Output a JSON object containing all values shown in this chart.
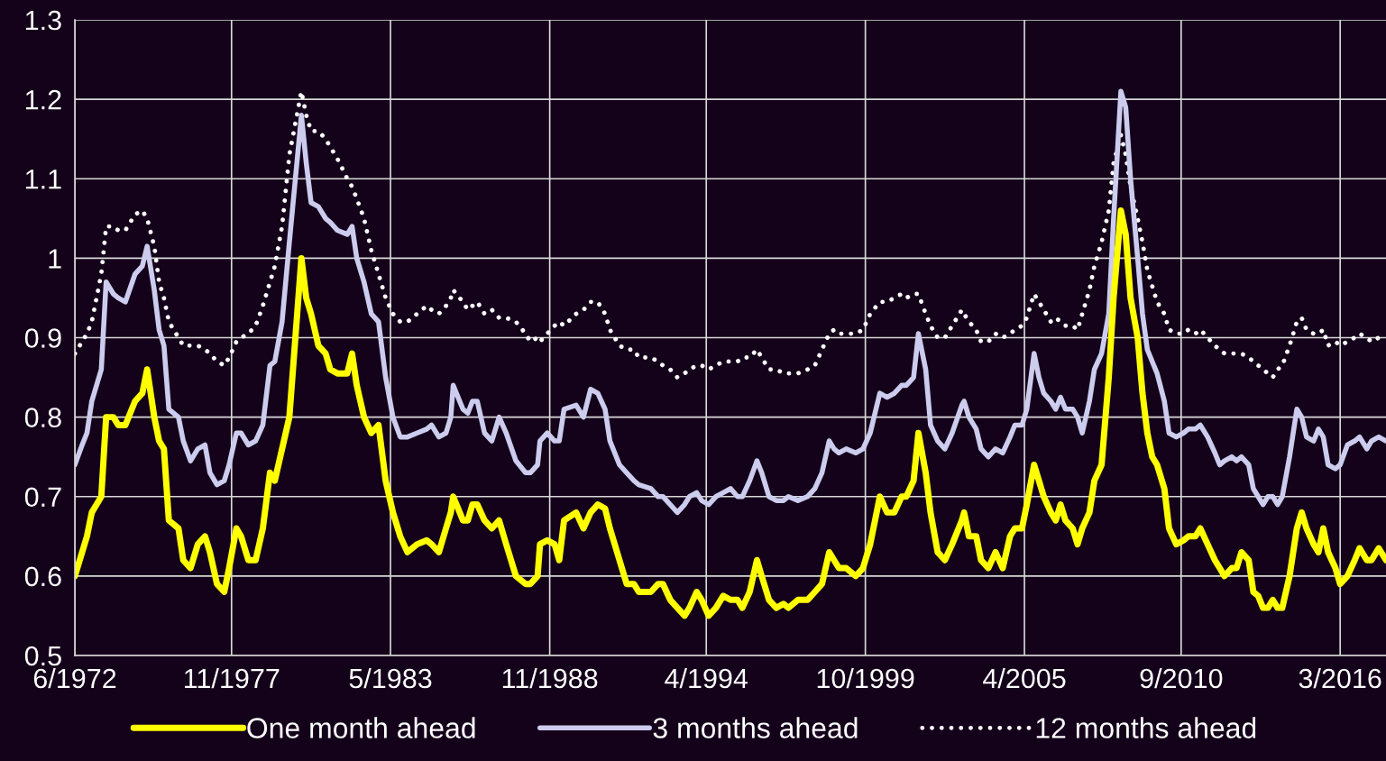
{
  "chart_data": {
    "type": "line",
    "x": [
      "1972-06",
      "1972-09",
      "1972-11",
      "1973-01",
      "1973-05",
      "1973-07",
      "1973-10",
      "1973-12",
      "1974-03",
      "1974-07",
      "1974-10",
      "1974-12",
      "1975-03",
      "1975-05",
      "1975-07",
      "1975-09",
      "1976-01",
      "1976-03",
      "1976-06",
      "1976-09",
      "1976-12",
      "1977-02",
      "1977-05",
      "1977-08",
      "1977-10",
      "1978-01",
      "1978-03",
      "1978-06",
      "1978-09",
      "1978-12",
      "1979-03",
      "1979-05",
      "1979-08",
      "1979-11",
      "1980-04",
      "1980-06",
      "1980-08",
      "1980-11",
      "1981-02",
      "1981-04",
      "1981-07",
      "1981-11",
      "1982-01",
      "1982-03",
      "1982-06",
      "1982-09",
      "1982-12",
      "1983-03",
      "1983-06",
      "1983-09",
      "1983-12",
      "1984-04",
      "1984-08",
      "1984-10",
      "1985-01",
      "1985-04",
      "1985-06",
      "1985-07",
      "1985-11",
      "1986-01",
      "1986-03",
      "1986-05",
      "1986-08",
      "1986-11",
      "1987-02",
      "1987-05",
      "1987-09",
      "1988-01",
      "1988-03",
      "1988-06",
      "1988-07",
      "1988-10",
      "1989-01",
      "1989-03",
      "1989-05",
      "1989-10",
      "1990-01",
      "1990-04",
      "1990-07",
      "1990-10",
      "1990-12",
      "1991-04",
      "1991-07",
      "1991-10",
      "1991-12",
      "1992-05",
      "1992-08",
      "1992-10",
      "1993-01",
      "1993-04",
      "1993-07",
      "1993-09",
      "1993-12",
      "1994-02",
      "1994-05",
      "1994-08",
      "1994-11",
      "1995-02",
      "1995-05",
      "1995-07",
      "1995-10",
      "1996-01",
      "1996-03",
      "1996-06",
      "1996-09",
      "1996-12",
      "1997-02",
      "1997-06",
      "1997-10",
      "1998-01",
      "1998-04",
      "1998-07",
      "1998-09",
      "1998-11",
      "1999-02",
      "1999-06",
      "1999-09",
      "1999-12",
      "2000-04",
      "2000-07",
      "2000-10",
      "2001-01",
      "2001-03",
      "2001-06",
      "2001-08",
      "2001-11",
      "2002-01",
      "2002-04",
      "2002-07",
      "2002-10",
      "2003-02",
      "2003-03",
      "2003-05",
      "2003-08",
      "2003-10",
      "2004-01",
      "2004-04",
      "2004-07",
      "2004-10",
      "2004-12",
      "2005-03",
      "2005-05",
      "2005-08",
      "2005-10",
      "2005-12",
      "2006-03",
      "2006-05",
      "2006-07",
      "2006-09",
      "2006-12",
      "2007-02",
      "2007-04",
      "2007-07",
      "2007-09",
      "2007-12",
      "2008-03",
      "2008-05",
      "2008-08",
      "2008-10",
      "2008-12",
      "2009-03",
      "2009-05",
      "2009-07",
      "2009-09",
      "2009-11",
      "2010-02",
      "2010-04",
      "2010-07",
      "2010-10",
      "2010-12",
      "2011-03",
      "2011-05",
      "2011-08",
      "2011-11",
      "2012-01",
      "2012-03",
      "2012-06",
      "2012-08",
      "2012-10",
      "2013-01",
      "2013-03",
      "2013-05",
      "2013-07",
      "2013-09",
      "2013-11",
      "2014-01",
      "2014-03",
      "2014-06",
      "2014-09",
      "2014-11",
      "2015-01",
      "2015-04",
      "2015-06",
      "2015-08",
      "2015-10",
      "2016-01",
      "2016-03",
      "2016-06",
      "2016-09",
      "2016-11",
      "2017-02",
      "2017-04",
      "2017-07",
      "2017-10"
    ],
    "series": [
      {
        "name": "One month ahead",
        "color": "#ffff00",
        "line_style": "solid",
        "values": [
          0.6,
          0.63,
          0.65,
          0.68,
          0.7,
          0.8,
          0.8,
          0.79,
          0.79,
          0.82,
          0.83,
          0.86,
          0.8,
          0.77,
          0.76,
          0.67,
          0.66,
          0.62,
          0.61,
          0.64,
          0.65,
          0.63,
          0.59,
          0.58,
          0.61,
          0.66,
          0.65,
          0.62,
          0.62,
          0.66,
          0.73,
          0.72,
          0.76,
          0.8,
          1.0,
          0.95,
          0.93,
          0.89,
          0.88,
          0.86,
          0.855,
          0.855,
          0.88,
          0.84,
          0.8,
          0.78,
          0.79,
          0.72,
          0.68,
          0.65,
          0.63,
          0.64,
          0.645,
          0.64,
          0.63,
          0.66,
          0.68,
          0.7,
          0.67,
          0.67,
          0.69,
          0.69,
          0.67,
          0.66,
          0.67,
          0.64,
          0.6,
          0.59,
          0.59,
          0.6,
          0.64,
          0.645,
          0.64,
          0.62,
          0.67,
          0.68,
          0.66,
          0.68,
          0.69,
          0.685,
          0.66,
          0.62,
          0.59,
          0.59,
          0.58,
          0.58,
          0.59,
          0.59,
          0.57,
          0.56,
          0.55,
          0.56,
          0.58,
          0.57,
          0.55,
          0.56,
          0.575,
          0.57,
          0.57,
          0.56,
          0.58,
          0.62,
          0.6,
          0.57,
          0.56,
          0.565,
          0.56,
          0.57,
          0.57,
          0.58,
          0.59,
          0.63,
          0.62,
          0.61,
          0.61,
          0.6,
          0.61,
          0.64,
          0.7,
          0.68,
          0.68,
          0.7,
          0.7,
          0.72,
          0.78,
          0.73,
          0.68,
          0.63,
          0.62,
          0.64,
          0.67,
          0.68,
          0.65,
          0.65,
          0.62,
          0.61,
          0.63,
          0.61,
          0.65,
          0.66,
          0.66,
          0.69,
          0.74,
          0.72,
          0.7,
          0.68,
          0.67,
          0.69,
          0.67,
          0.66,
          0.64,
          0.66,
          0.68,
          0.72,
          0.74,
          0.85,
          0.95,
          1.06,
          1.03,
          0.95,
          0.9,
          0.83,
          0.78,
          0.75,
          0.74,
          0.71,
          0.66,
          0.64,
          0.645,
          0.65,
          0.65,
          0.66,
          0.64,
          0.62,
          0.61,
          0.6,
          0.61,
          0.61,
          0.63,
          0.62,
          0.58,
          0.575,
          0.56,
          0.56,
          0.57,
          0.56,
          0.56,
          0.6,
          0.66,
          0.68,
          0.66,
          0.64,
          0.63,
          0.66,
          0.63,
          0.61,
          0.59,
          0.6,
          0.62,
          0.635,
          0.62,
          0.62,
          0.635,
          0.62
        ]
      },
      {
        "name": "3 months ahead",
        "color": "#ccccee",
        "line_style": "solid",
        "values": [
          0.74,
          0.765,
          0.78,
          0.82,
          0.86,
          0.97,
          0.955,
          0.95,
          0.945,
          0.98,
          0.99,
          1.015,
          0.96,
          0.91,
          0.89,
          0.81,
          0.8,
          0.77,
          0.745,
          0.76,
          0.765,
          0.73,
          0.715,
          0.72,
          0.74,
          0.78,
          0.78,
          0.765,
          0.77,
          0.79,
          0.865,
          0.87,
          0.92,
          1.02,
          1.18,
          1.12,
          1.07,
          1.065,
          1.05,
          1.045,
          1.035,
          1.03,
          1.04,
          1.0,
          0.97,
          0.93,
          0.92,
          0.85,
          0.8,
          0.775,
          0.775,
          0.78,
          0.785,
          0.79,
          0.775,
          0.78,
          0.8,
          0.84,
          0.81,
          0.805,
          0.82,
          0.82,
          0.78,
          0.77,
          0.8,
          0.78,
          0.745,
          0.73,
          0.73,
          0.74,
          0.77,
          0.78,
          0.77,
          0.77,
          0.81,
          0.815,
          0.8,
          0.835,
          0.83,
          0.81,
          0.77,
          0.74,
          0.73,
          0.72,
          0.715,
          0.71,
          0.7,
          0.7,
          0.69,
          0.68,
          0.69,
          0.7,
          0.705,
          0.695,
          0.69,
          0.7,
          0.705,
          0.71,
          0.7,
          0.7,
          0.72,
          0.745,
          0.73,
          0.7,
          0.695,
          0.695,
          0.7,
          0.695,
          0.7,
          0.71,
          0.73,
          0.77,
          0.76,
          0.755,
          0.76,
          0.755,
          0.76,
          0.78,
          0.83,
          0.825,
          0.83,
          0.84,
          0.84,
          0.85,
          0.905,
          0.86,
          0.79,
          0.77,
          0.76,
          0.78,
          0.815,
          0.82,
          0.8,
          0.785,
          0.76,
          0.75,
          0.76,
          0.755,
          0.775,
          0.79,
          0.79,
          0.81,
          0.88,
          0.85,
          0.83,
          0.82,
          0.81,
          0.825,
          0.81,
          0.81,
          0.8,
          0.78,
          0.82,
          0.86,
          0.88,
          0.93,
          1.05,
          1.21,
          1.19,
          1.1,
          1.0,
          0.93,
          0.885,
          0.87,
          0.855,
          0.82,
          0.78,
          0.775,
          0.78,
          0.785,
          0.785,
          0.79,
          0.775,
          0.755,
          0.74,
          0.745,
          0.75,
          0.745,
          0.75,
          0.74,
          0.71,
          0.7,
          0.69,
          0.7,
          0.7,
          0.69,
          0.7,
          0.75,
          0.81,
          0.8,
          0.775,
          0.77,
          0.785,
          0.775,
          0.74,
          0.735,
          0.74,
          0.765,
          0.77,
          0.775,
          0.76,
          0.77,
          0.775,
          0.77
        ]
      },
      {
        "name": "12 months ahead",
        "color": "#ffffff",
        "line_style": "dotted",
        "values": [
          0.88,
          0.895,
          0.905,
          0.92,
          0.98,
          1.04,
          1.04,
          1.035,
          1.035,
          1.055,
          1.06,
          1.05,
          1.015,
          0.97,
          0.95,
          0.92,
          0.9,
          0.89,
          0.89,
          0.89,
          0.885,
          0.88,
          0.87,
          0.865,
          0.875,
          0.895,
          0.9,
          0.905,
          0.915,
          0.94,
          0.97,
          0.99,
          1.04,
          1.13,
          1.21,
          1.18,
          1.16,
          1.16,
          1.15,
          1.14,
          1.125,
          1.1,
          1.09,
          1.075,
          1.05,
          1.01,
          0.98,
          0.95,
          0.93,
          0.92,
          0.92,
          0.93,
          0.94,
          0.935,
          0.93,
          0.94,
          0.95,
          0.96,
          0.945,
          0.935,
          0.94,
          0.945,
          0.93,
          0.935,
          0.925,
          0.925,
          0.92,
          0.905,
          0.895,
          0.9,
          0.895,
          0.905,
          0.915,
          0.92,
          0.915,
          0.93,
          0.935,
          0.945,
          0.945,
          0.93,
          0.91,
          0.89,
          0.885,
          0.885,
          0.875,
          0.875,
          0.87,
          0.865,
          0.86,
          0.85,
          0.855,
          0.86,
          0.865,
          0.865,
          0.86,
          0.865,
          0.87,
          0.87,
          0.87,
          0.875,
          0.875,
          0.885,
          0.875,
          0.86,
          0.86,
          0.855,
          0.855,
          0.855,
          0.86,
          0.865,
          0.885,
          0.905,
          0.91,
          0.905,
          0.905,
          0.905,
          0.91,
          0.93,
          0.945,
          0.945,
          0.95,
          0.955,
          0.95,
          0.955,
          0.955,
          0.93,
          0.915,
          0.9,
          0.9,
          0.915,
          0.935,
          0.93,
          0.92,
          0.91,
          0.895,
          0.895,
          0.905,
          0.9,
          0.905,
          0.91,
          0.915,
          0.925,
          0.955,
          0.945,
          0.935,
          0.92,
          0.925,
          0.92,
          0.915,
          0.915,
          0.91,
          0.93,
          0.96,
          0.99,
          1.02,
          1.06,
          1.12,
          1.155,
          1.13,
          1.09,
          1.05,
          1.02,
          0.985,
          0.965,
          0.945,
          0.93,
          0.91,
          0.905,
          0.905,
          0.91,
          0.905,
          0.91,
          0.9,
          0.89,
          0.885,
          0.88,
          0.88,
          0.88,
          0.88,
          0.875,
          0.87,
          0.865,
          0.86,
          0.855,
          0.85,
          0.86,
          0.865,
          0.89,
          0.92,
          0.925,
          0.91,
          0.905,
          0.905,
          0.91,
          0.89,
          0.895,
          0.89,
          0.895,
          0.9,
          0.905,
          0.9,
          0.895,
          0.9,
          0.895
        ]
      }
    ],
    "xlim": [
      "1972-06",
      "2017-10"
    ],
    "xticks": [
      {
        "value": "1972-06",
        "label": "6/1972"
      },
      {
        "value": "1977-11",
        "label": "11/1977"
      },
      {
        "value": "1983-05",
        "label": "5/1983"
      },
      {
        "value": "1988-11",
        "label": "11/1988"
      },
      {
        "value": "1994-04",
        "label": "4/1994"
      },
      {
        "value": "1999-10",
        "label": "10/1999"
      },
      {
        "value": "2005-04",
        "label": "4/2005"
      },
      {
        "value": "2010-09",
        "label": "9/2010"
      },
      {
        "value": "2016-03",
        "label": "3/2016"
      }
    ],
    "ylim": [
      0.5,
      1.3
    ],
    "yticks": [
      {
        "value": 0.5,
        "label": "0.5"
      },
      {
        "value": 0.6,
        "label": "0.6"
      },
      {
        "value": 0.7,
        "label": "0.7"
      },
      {
        "value": 0.8,
        "label": "0.8"
      },
      {
        "value": 0.9,
        "label": "0.9"
      },
      {
        "value": 1.0,
        "label": "1"
      },
      {
        "value": 1.1,
        "label": "1.1"
      },
      {
        "value": 1.2,
        "label": "1.2"
      },
      {
        "value": 1.3,
        "label": "1.3"
      }
    ],
    "grid": true,
    "legend": "bottom",
    "marker": "none"
  }
}
